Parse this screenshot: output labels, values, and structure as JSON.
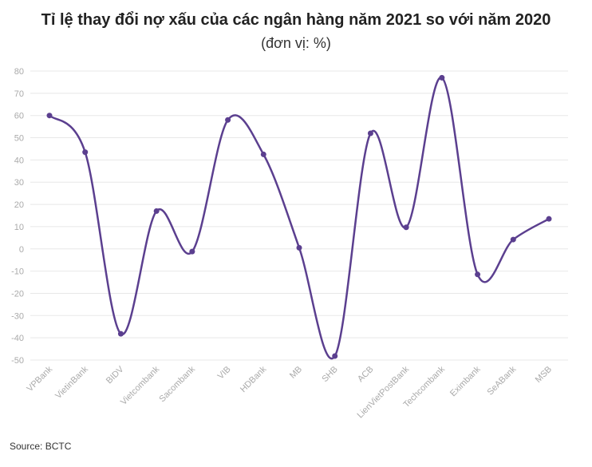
{
  "chart_data": {
    "type": "line",
    "title": "Tỉ lệ thay đổi nợ xấu của các ngân hàng năm 2021 so với năm 2020",
    "subtitle": "(đơn vị: %)",
    "source": "Source: BCTC",
    "categories": [
      "VPBank",
      "VietinBank",
      "BIDV",
      "Vietcombank",
      "Sacombank",
      "VIB",
      "HDBank",
      "MB",
      "SHB",
      "ACB",
      "LienVietPostBank",
      "Techcombank",
      "Eximbank",
      "SeABank",
      "MSB"
    ],
    "series": [
      {
        "values": [
          60,
          43.5,
          -38.2,
          17,
          -1.2,
          58,
          42.5,
          0.5,
          -48.2,
          52,
          9.7,
          77,
          -11.5,
          4.2,
          13.5
        ]
      }
    ],
    "yticks": [
      80,
      70,
      60,
      50,
      40,
      30,
      20,
      10,
      0,
      -10,
      -20,
      -30,
      -40,
      -50
    ],
    "ylim": [
      -50,
      80
    ],
    "grid": true,
    "line_color": "#5b3f8f",
    "grid_color": "#e8e8e8",
    "tick_color": "#aaaaaa",
    "smooth": true
  }
}
